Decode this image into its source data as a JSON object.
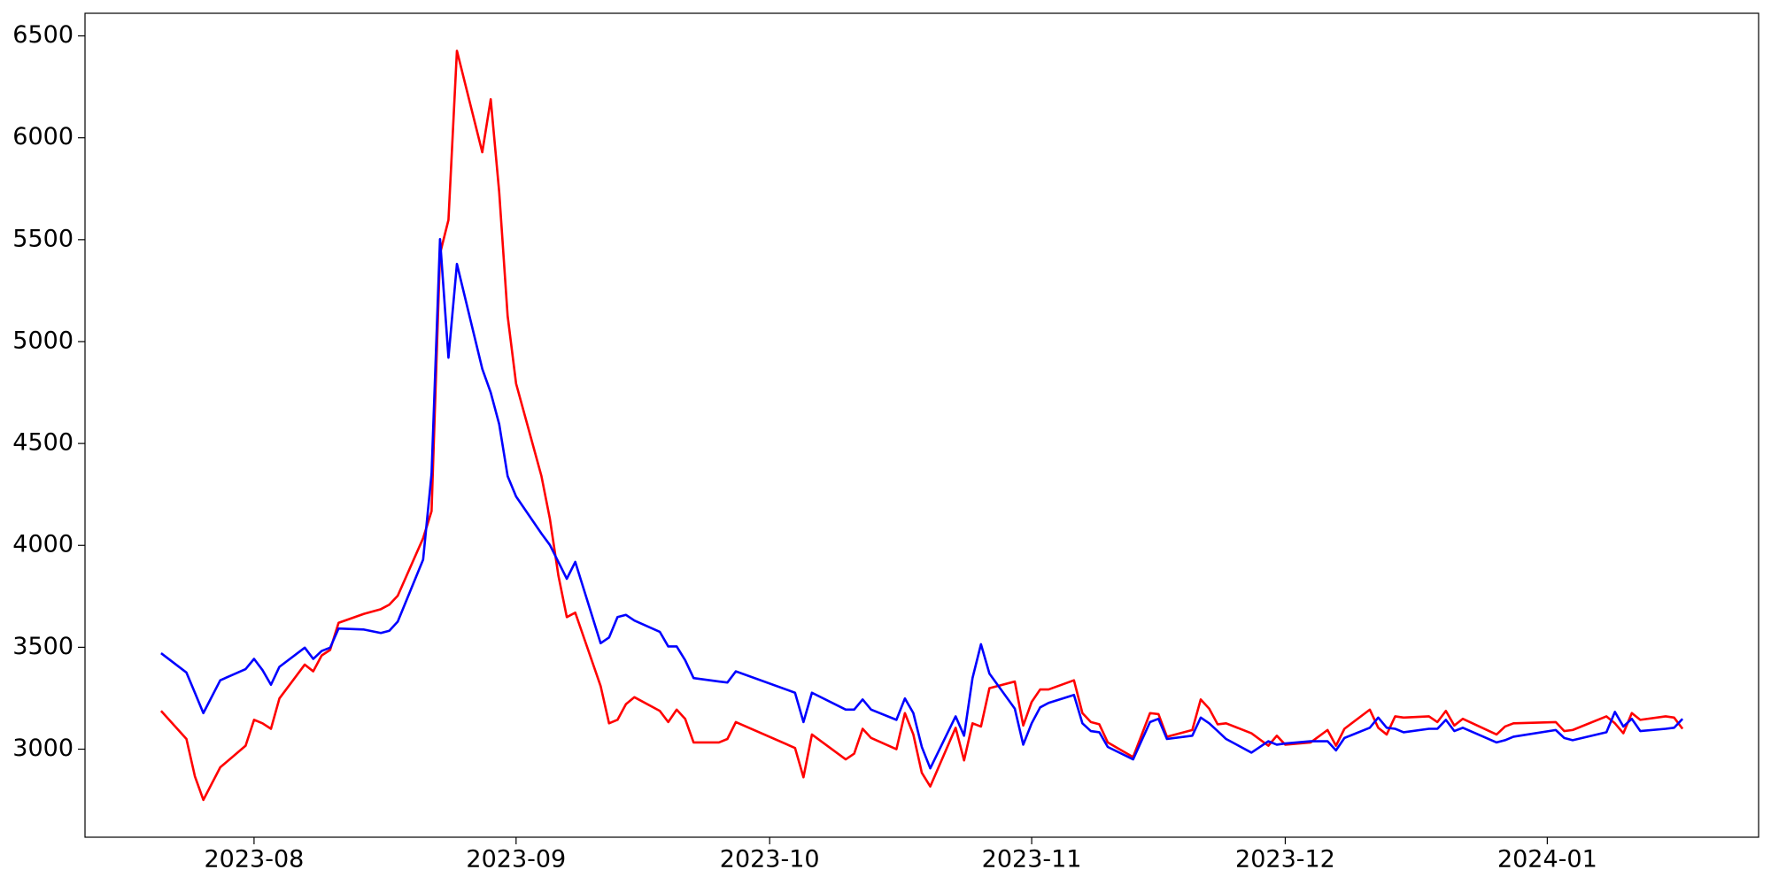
{
  "chart_data": {
    "type": "line",
    "x": [
      19559,
      19562,
      19563,
      19564,
      19566,
      19569,
      19570,
      19571,
      19572,
      19573,
      19576,
      19577,
      19578,
      19579,
      19580,
      19583,
      19585,
      19586,
      19587,
      19590,
      19591,
      19592,
      19593,
      19594,
      19597,
      19598,
      19599,
      19600,
      19601,
      19604,
      19605,
      19606,
      19607,
      19608,
      19611,
      19612,
      19613,
      19614,
      19615,
      19618,
      19619,
      19620,
      19621,
      19622,
      19625,
      19626,
      19627,
      19634,
      19635,
      19636,
      19640,
      19641,
      19642,
      19643,
      19646,
      19647,
      19648,
      19649,
      19650,
      19653,
      19654,
      19655,
      19656,
      19657,
      19660,
      19661,
      19662,
      19663,
      19664,
      19667,
      19668,
      19669,
      19670,
      19671,
      19674,
      19676,
      19677,
      19678,
      19681,
      19682,
      19683,
      19684,
      19685,
      19688,
      19690,
      19691,
      19692,
      19695,
      19697,
      19698,
      19699,
      19702,
      19703,
      19704,
      19705,
      19706,
      19709,
      19710,
      19711,
      19712,
      19713,
      19717,
      19718,
      19719,
      19724,
      19725,
      19726,
      19730,
      19731,
      19732,
      19733,
      19734,
      19737,
      19738,
      19739
    ],
    "series": [
      {
        "color": "#ff0000",
        "values": [
          3188,
          3050,
          2867,
          2751,
          2911,
          3017,
          3144,
          3127,
          3100,
          3249,
          3415,
          3382,
          3460,
          3487,
          3620,
          3664,
          3687,
          3709,
          3753,
          4035,
          4168,
          5431,
          5597,
          6427,
          5929,
          6189,
          5735,
          5126,
          4794,
          4340,
          4130,
          3853,
          3648,
          3670,
          3310,
          3127,
          3144,
          3221,
          3255,
          3188,
          3133,
          3194,
          3149,
          3033,
          3033,
          3050,
          3133,
          3006,
          2862,
          3072,
          2950,
          2978,
          3100,
          3055,
          3000,
          3177,
          3072,
          2884,
          2817,
          3105,
          2945,
          3127,
          3111,
          3299,
          3332,
          3116,
          3232,
          3293,
          3293,
          3338,
          3177,
          3133,
          3122,
          3033,
          2961,
          3177,
          3172,
          3061,
          3094,
          3244,
          3199,
          3122,
          3127,
          3078,
          3017,
          3066,
          3022,
          3033,
          3094,
          3017,
          3100,
          3194,
          3105,
          3072,
          3161,
          3155,
          3161,
          3133,
          3188,
          3116,
          3149,
          3072,
          3111,
          3127,
          3133,
          3089,
          3094,
          3161,
          3127,
          3078,
          3177,
          3144,
          3161,
          3155,
          3100
        ]
      },
      {
        "color": "#0000ff",
        "values": [
          3471,
          3376,
          3277,
          3177,
          3338,
          3393,
          3443,
          3388,
          3316,
          3404,
          3498,
          3443,
          3482,
          3498,
          3592,
          3587,
          3570,
          3581,
          3626,
          3930,
          4351,
          5503,
          4921,
          5381,
          4866,
          4750,
          4595,
          4340,
          4240,
          4058,
          4002,
          3919,
          3836,
          3919,
          3520,
          3548,
          3648,
          3659,
          3631,
          3576,
          3504,
          3504,
          3437,
          3349,
          3332,
          3327,
          3382,
          3277,
          3133,
          3277,
          3194,
          3194,
          3244,
          3194,
          3144,
          3249,
          3177,
          3011,
          2906,
          3161,
          3066,
          3349,
          3515,
          3371,
          3199,
          3022,
          3127,
          3205,
          3227,
          3266,
          3127,
          3089,
          3083,
          3011,
          2950,
          3133,
          3149,
          3050,
          3066,
          3155,
          3127,
          3089,
          3050,
          2983,
          3039,
          3022,
          3028,
          3039,
          3039,
          2994,
          3055,
          3105,
          3155,
          3105,
          3100,
          3083,
          3100,
          3100,
          3144,
          3089,
          3105,
          3033,
          3044,
          3061,
          3094,
          3055,
          3044,
          3083,
          3183,
          3111,
          3149,
          3089,
          3100,
          3105,
          3149
        ]
      }
    ],
    "xlim": [
      19550,
      19748
    ],
    "xticks": [
      {
        "value": 19570,
        "label": "2023-08"
      },
      {
        "value": 19601,
        "label": "2023-09"
      },
      {
        "value": 19631,
        "label": "2023-10"
      },
      {
        "value": 19662,
        "label": "2023-11"
      },
      {
        "value": 19692,
        "label": "2023-12"
      },
      {
        "value": 19723,
        "label": "2024-01"
      }
    ],
    "ylim": [
      2568,
      6611
    ],
    "yticks": [
      3000,
      3500,
      4000,
      4500,
      5000,
      5500,
      6000,
      6500
    ]
  }
}
